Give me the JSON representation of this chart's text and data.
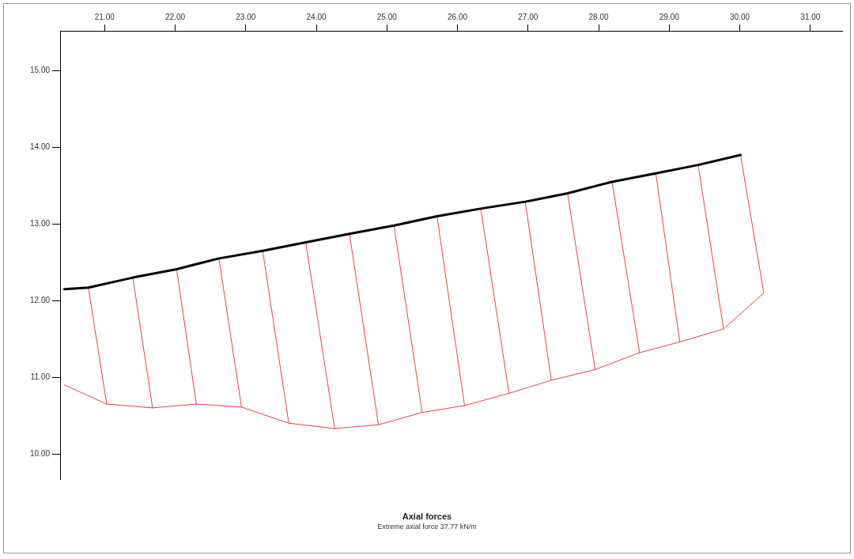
{
  "chart_data": {
    "type": "line",
    "title": "Axial forces",
    "subtitle": "Extreme axial force 37.77 kN/m",
    "xlim": [
      20.37,
      31.45
    ],
    "xticks": [
      {
        "value": 21,
        "label": "21.00"
      },
      {
        "value": 22,
        "label": "22.00"
      },
      {
        "value": 23,
        "label": "23.00"
      },
      {
        "value": 24,
        "label": "24.00"
      },
      {
        "value": 25,
        "label": "25.00"
      },
      {
        "value": 26,
        "label": "26.00"
      },
      {
        "value": 27,
        "label": "27.00"
      },
      {
        "value": 28,
        "label": "28.00"
      },
      {
        "value": 29,
        "label": "29.00"
      },
      {
        "value": 30,
        "label": "30.00"
      },
      {
        "value": 31,
        "label": "31.00"
      }
    ],
    "ylim": [
      9.67,
      15.52
    ],
    "yticks": [
      {
        "value": 10,
        "label": "10.00"
      },
      {
        "value": 11,
        "label": "11.00"
      },
      {
        "value": 12,
        "label": "12.00"
      },
      {
        "value": 13,
        "label": "13.00"
      },
      {
        "value": 14,
        "label": "14.00"
      },
      {
        "value": 15,
        "label": "15.00"
      }
    ],
    "grid": false,
    "legend": false,
    "marker": "none",
    "line_style": "solid",
    "series": [
      {
        "color": "#000000",
        "x": [
          20.43,
          20.77,
          21.4,
          22.02,
          22.62,
          23.24,
          23.85,
          24.47,
          25.1,
          25.71,
          26.33,
          26.96,
          27.56,
          28.19,
          28.81,
          29.41,
          30.01
        ],
        "values": [
          12.15,
          12.17,
          12.3,
          12.41,
          12.55,
          12.65,
          12.76,
          12.87,
          12.98,
          13.1,
          13.2,
          13.29,
          13.4,
          13.55,
          13.66,
          13.77,
          13.9
        ]
      },
      {
        "color": "#f04040",
        "x": [
          20.43,
          21.03,
          21.68,
          22.3,
          22.94,
          23.61,
          24.26,
          24.88,
          25.5,
          26.1,
          26.73,
          27.33,
          27.95,
          28.58,
          29.15,
          29.77,
          30.34,
          30.01
        ],
        "values": [
          10.9,
          10.65,
          10.6,
          10.65,
          10.61,
          10.4,
          10.33,
          10.38,
          10.54,
          10.63,
          10.79,
          10.96,
          11.1,
          11.32,
          11.46,
          11.63,
          12.1,
          13.9
        ]
      },
      {
        "color": "#f04040",
        "x": [
          20.77,
          21.03,
          null,
          21.4,
          21.68,
          null,
          22.02,
          22.3,
          null,
          22.62,
          22.94,
          null,
          23.24,
          23.61,
          null,
          23.85,
          24.26,
          null,
          24.47,
          24.88,
          null,
          25.1,
          25.5,
          null,
          25.71,
          26.1,
          null,
          26.33,
          26.73,
          null,
          26.96,
          27.33,
          null,
          27.56,
          27.95,
          null,
          28.19,
          28.58,
          null,
          28.81,
          29.15,
          null,
          29.41,
          29.77
        ],
        "values": [
          12.17,
          10.65,
          null,
          12.3,
          10.6,
          null,
          12.41,
          10.65,
          null,
          12.55,
          10.61,
          null,
          12.65,
          10.4,
          null,
          12.76,
          10.33,
          null,
          12.87,
          10.38,
          null,
          12.98,
          10.54,
          null,
          13.1,
          10.63,
          null,
          13.2,
          10.79,
          null,
          13.29,
          10.96,
          null,
          13.4,
          11.1,
          null,
          13.55,
          11.32,
          null,
          13.66,
          11.46,
          null,
          13.77,
          11.63
        ]
      }
    ]
  }
}
